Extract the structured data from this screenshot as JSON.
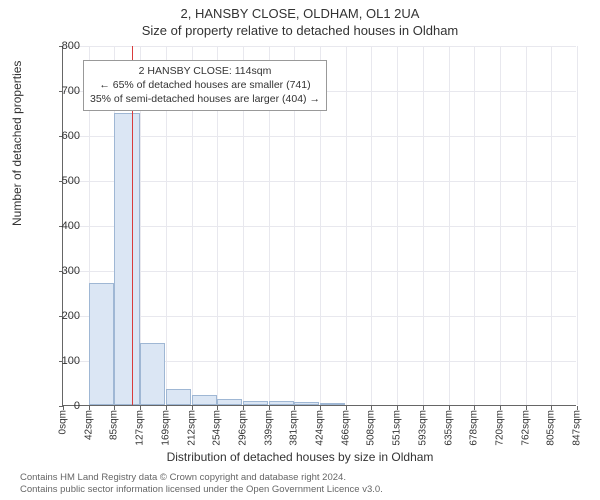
{
  "title": "2, HANSBY CLOSE, OLDHAM, OL1 2UA",
  "subtitle": "Size of property relative to detached houses in Oldham",
  "ylabel": "Number of detached properties",
  "xlabel": "Distribution of detached houses by size in Oldham",
  "footer_line1": "Contains HM Land Registry data © Crown copyright and database right 2024.",
  "footer_line2": "Contains public sector information licensed under the Open Government Licence v3.0.",
  "chart": {
    "type": "histogram",
    "ylim": [
      0,
      800
    ],
    "ytick_step": 100,
    "yticks": [
      0,
      100,
      200,
      300,
      400,
      500,
      600,
      700,
      800
    ],
    "x_bin_width": 42.5,
    "x_start": 0,
    "xtick_labels": [
      "0sqm",
      "42sqm",
      "85sqm",
      "127sqm",
      "169sqm",
      "212sqm",
      "254sqm",
      "296sqm",
      "339sqm",
      "381sqm",
      "424sqm",
      "466sqm",
      "508sqm",
      "551sqm",
      "593sqm",
      "635sqm",
      "678sqm",
      "720sqm",
      "762sqm",
      "805sqm",
      "847sqm"
    ],
    "values": [
      0,
      272,
      648,
      138,
      36,
      22,
      14,
      10,
      8,
      6,
      5,
      0,
      0,
      0,
      0,
      0,
      0,
      0,
      0,
      0
    ],
    "bar_fill": "#dbe6f4",
    "bar_stroke": "#9fb7d4",
    "background_color": "#ffffff",
    "grid_color": "#e8e8ee",
    "axis_color": "#666666",
    "marker": {
      "x_value": 114,
      "color": "#d93b3b"
    },
    "annotation": {
      "line1": "2 HANSBY CLOSE: 114sqm",
      "line2": "← 65% of detached houses are smaller (741)",
      "line3": "35% of semi-detached houses are larger (404) →"
    }
  }
}
